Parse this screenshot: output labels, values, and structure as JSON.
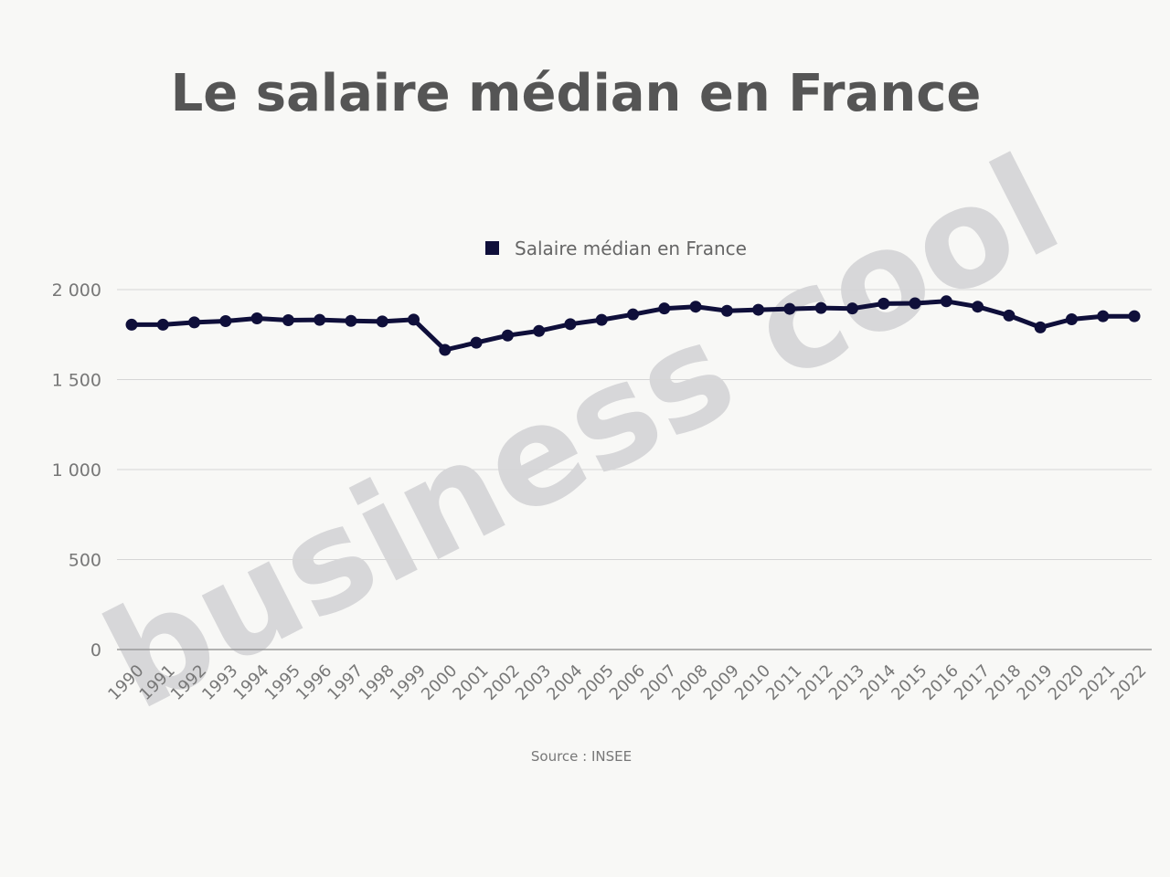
{
  "title": "Le salaire médian en France",
  "source": "Source : INSEE",
  "watermark": "business cool",
  "colors": {
    "series": "#0f0f3a",
    "grid": "#d6d6d6",
    "axis": "#9a9a9a",
    "title": "#555555",
    "watermark": "#d2d2d4"
  },
  "chart_data": {
    "type": "line",
    "title": "Le salaire médian en France",
    "xlabel": "",
    "ylabel": "",
    "ylim": [
      0,
      2000
    ],
    "yticks": [
      0,
      500,
      1000,
      1500,
      2000
    ],
    "ytick_labels": [
      "0",
      "500",
      "1 000",
      "1 500",
      "2 000"
    ],
    "grid": true,
    "legend": "top-center",
    "x": [
      "1990",
      "1991",
      "1992",
      "1993",
      "1994",
      "1995",
      "1996",
      "1997",
      "1998",
      "1999",
      "2000",
      "2001",
      "2002",
      "2003",
      "2004",
      "2005",
      "2006",
      "2007",
      "2008",
      "2009",
      "2010",
      "2011",
      "2012",
      "2013",
      "2014",
      "2015",
      "2016",
      "2017",
      "2018",
      "2019",
      "2020",
      "2021",
      "2022"
    ],
    "series": [
      {
        "name": "Salaire médian en France",
        "color": "#0f0f3a",
        "values": [
          1805,
          1805,
          1818,
          1825,
          1840,
          1830,
          1832,
          1826,
          1823,
          1833,
          1665,
          1705,
          1745,
          1770,
          1808,
          1832,
          1862,
          1895,
          1905,
          1882,
          1888,
          1893,
          1898,
          1895,
          1922,
          1924,
          1935,
          1905,
          1856,
          1790,
          1835,
          1852,
          1852
        ]
      }
    ]
  }
}
